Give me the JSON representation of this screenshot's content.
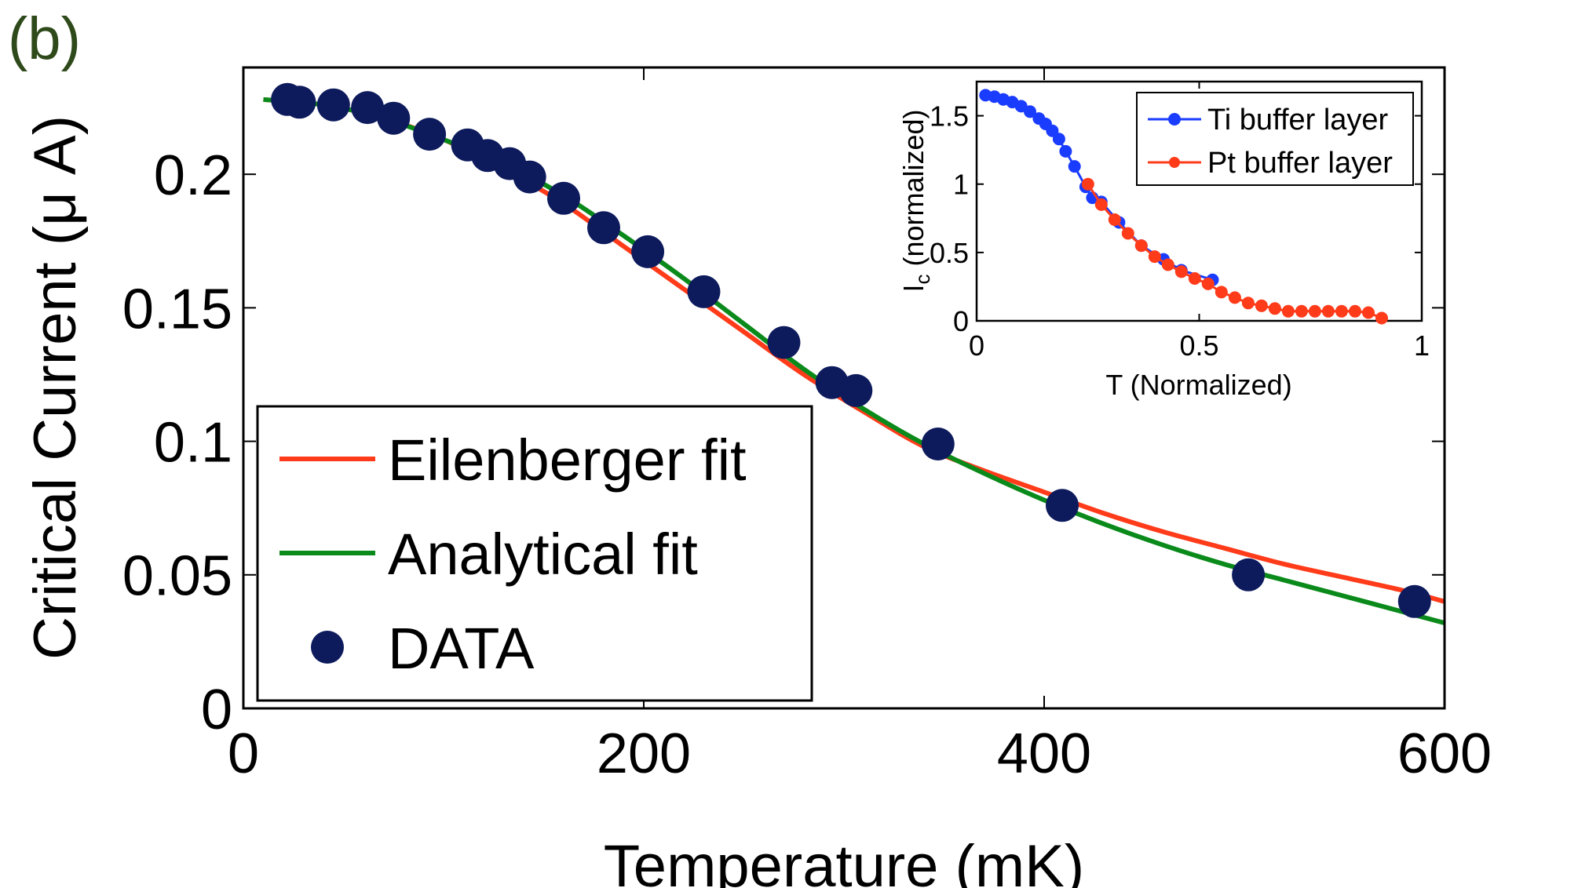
{
  "panel_label": "(b)",
  "chart_data": [
    {
      "id": "main",
      "type": "line",
      "xlabel": "Temperature (mK)",
      "ylabel": "Critical Current (μ A)",
      "xlim": [
        0,
        600
      ],
      "ylim": [
        0,
        0.24
      ],
      "xticks": [
        "0",
        "200",
        "400",
        "600"
      ],
      "xtick_values": [
        0,
        200,
        400,
        600
      ],
      "yticks": [
        "0",
        "0.05",
        "0.1",
        "0.15",
        "0.2"
      ],
      "ytick_values": [
        0,
        0.05,
        0.1,
        0.15,
        0.2
      ],
      "grid": false,
      "legend_position": "bottom-left",
      "series": [
        {
          "name": "Eilenberger fit",
          "kind": "line",
          "color": "#ff3b1a",
          "x": [
            10,
            40,
            70,
            100,
            130,
            160,
            190,
            220,
            250,
            280,
            310,
            340,
            370,
            400,
            430,
            460,
            490,
            520,
            550,
            580,
            600
          ],
          "y": [
            0.228,
            0.226,
            0.221,
            0.213,
            0.202,
            0.189,
            0.173,
            0.157,
            0.141,
            0.125,
            0.111,
            0.098,
            0.089,
            0.081,
            0.073,
            0.066,
            0.06,
            0.054,
            0.049,
            0.044,
            0.04
          ]
        },
        {
          "name": "Analytical fit",
          "kind": "line",
          "color": "#0a8a1a",
          "x": [
            10,
            40,
            70,
            100,
            130,
            160,
            190,
            220,
            250,
            280,
            310,
            340,
            370,
            400,
            430,
            460,
            490,
            520,
            550,
            580,
            600
          ],
          "y": [
            0.228,
            0.226,
            0.221,
            0.213,
            0.204,
            0.192,
            0.177,
            0.161,
            0.144,
            0.127,
            0.112,
            0.099,
            0.088,
            0.078,
            0.069,
            0.061,
            0.054,
            0.048,
            0.042,
            0.036,
            0.032
          ]
        },
        {
          "name": "DATA",
          "kind": "scatter",
          "color": "#0d1a5c",
          "x": [
            22,
            28,
            45,
            62,
            75,
            93,
            112,
            122,
            133,
            143,
            160,
            180,
            202,
            230,
            270,
            294,
            306,
            347,
            409,
            502,
            585
          ],
          "y": [
            0.228,
            0.227,
            0.226,
            0.225,
            0.221,
            0.215,
            0.211,
            0.207,
            0.204,
            0.199,
            0.191,
            0.18,
            0.171,
            0.156,
            0.137,
            0.122,
            0.119,
            0.099,
            0.076,
            0.05,
            0.04
          ]
        }
      ]
    },
    {
      "id": "inset",
      "type": "line",
      "xlabel": "T (Normalized)",
      "ylabel": "I",
      "ylabel_sub": "c",
      "ylabel_rest": " (normalized)",
      "xlim": [
        0,
        1
      ],
      "ylim": [
        0,
        1.75
      ],
      "xticks": [
        "0",
        "0.5",
        "1"
      ],
      "xtick_values": [
        0,
        0.5,
        1
      ],
      "yticks": [
        "0",
        "0.5",
        "1",
        "1.5"
      ],
      "ytick_values": [
        0,
        0.5,
        1,
        1.5
      ],
      "grid": false,
      "legend_position": "top-right",
      "series": [
        {
          "name": "Ti buffer layer",
          "kind": "line-markers",
          "color": "#1a3cff",
          "x": [
            0.02,
            0.04,
            0.06,
            0.08,
            0.1,
            0.12,
            0.14,
            0.155,
            0.17,
            0.185,
            0.2,
            0.22,
            0.245,
            0.26,
            0.28,
            0.32,
            0.37,
            0.42,
            0.46,
            0.53
          ],
          "y": [
            1.65,
            1.64,
            1.62,
            1.6,
            1.57,
            1.53,
            1.48,
            1.44,
            1.39,
            1.33,
            1.24,
            1.13,
            0.98,
            0.9,
            0.87,
            0.72,
            0.55,
            0.45,
            0.37,
            0.3
          ]
        },
        {
          "name": "Pt buffer layer",
          "kind": "line-markers",
          "color": "#ff3b1a",
          "x": [
            0.25,
            0.28,
            0.31,
            0.34,
            0.37,
            0.4,
            0.43,
            0.46,
            0.49,
            0.52,
            0.55,
            0.58,
            0.61,
            0.64,
            0.67,
            0.7,
            0.73,
            0.76,
            0.79,
            0.82,
            0.85,
            0.88,
            0.91
          ],
          "y": [
            1.0,
            0.85,
            0.74,
            0.64,
            0.55,
            0.47,
            0.41,
            0.36,
            0.31,
            0.27,
            0.21,
            0.17,
            0.13,
            0.11,
            0.09,
            0.07,
            0.07,
            0.07,
            0.07,
            0.07,
            0.07,
            0.06,
            0.02
          ]
        }
      ]
    }
  ]
}
